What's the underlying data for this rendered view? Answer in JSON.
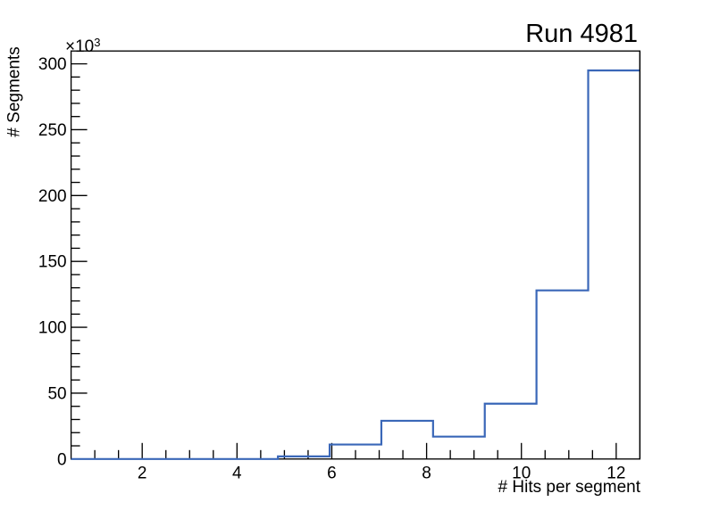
{
  "canvas": {
    "background": "#ffffff"
  },
  "chart_data": {
    "type": "histogram-step",
    "title": "Run 4981",
    "xlabel": "# Hits per segment",
    "ylabel": "# Segments",
    "y_multiplier": {
      "base": "×10",
      "exponent": "3"
    },
    "x_range": [
      0.5,
      12.5
    ],
    "y_range": [
      0,
      309.75
    ],
    "y_units": "thousands",
    "bin_start": 0.5,
    "bin_width": 1.0909090909,
    "values_thousands": [
      0,
      0,
      0,
      0,
      2,
      11,
      29,
      17,
      42,
      128,
      295
    ],
    "x_major_ticks": [
      2,
      4,
      6,
      8,
      10,
      12
    ],
    "x_major_tick_labels": [
      "2",
      "4",
      "6",
      "8",
      "10",
      "12"
    ],
    "x_minor_step": 0.5,
    "y_major_ticks": [
      0,
      50,
      100,
      150,
      200,
      250,
      300
    ],
    "y_major_tick_labels": [
      "0",
      "50",
      "100",
      "150",
      "200",
      "250",
      "300"
    ],
    "y_minor_step": 10,
    "grid": false,
    "legend": null,
    "line_color": "#3a67b8",
    "axis_color": "#000000"
  }
}
